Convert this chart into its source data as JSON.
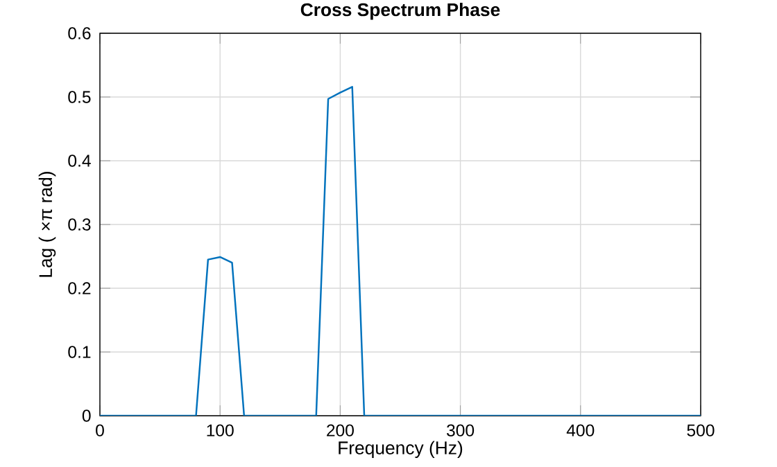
{
  "chart_data": {
    "type": "line",
    "title": "Cross Spectrum Phase",
    "xlabel": "Frequency (Hz)",
    "ylabel": "Lag  ( ×π  rad)",
    "x": [
      0,
      80,
      90,
      100,
      110,
      120,
      180,
      190,
      200,
      210,
      220,
      500
    ],
    "series": [
      {
        "color": "#0072bd",
        "values": [
          0,
          0,
          0.245,
          0.249,
          0.24,
          0,
          0,
          0.497,
          0.507,
          0.516,
          0,
          0
        ]
      }
    ],
    "xlim": [
      0,
      500
    ],
    "ylim": [
      0,
      0.6
    ],
    "xticks": [
      0,
      100,
      200,
      300,
      400,
      500
    ],
    "yticks": [
      0,
      0.1,
      0.2,
      0.3,
      0.4,
      0.5,
      0.6
    ],
    "grid": true
  }
}
